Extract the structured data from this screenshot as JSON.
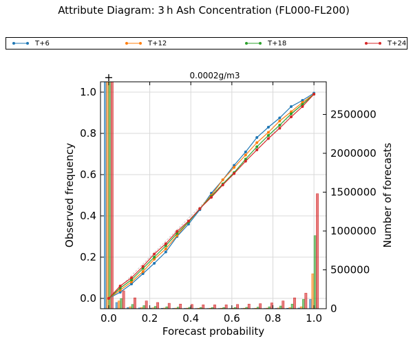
{
  "title": "Attribute Diagram: 3 h Ash Concentration (FL000-FL200)",
  "chart_data": {
    "type": "line",
    "title": "Attribute Diagram: 3 h Ash Concentration (FL000-FL200)",
    "subtitle": "0.0002g/m3",
    "xlabel": "Forecast probability",
    "ylabel": "Observed frequency",
    "y2label": "Number of forecasts",
    "xlim": [
      -0.04,
      1.06
    ],
    "ylim": [
      -0.05,
      1.05
    ],
    "y2lim": [
      0,
      2920000
    ],
    "x_ticks": [
      "0.0",
      "0.2",
      "0.4",
      "0.6",
      "0.8",
      "1.0"
    ],
    "y_ticks": [
      "0.0",
      "0.2",
      "0.4",
      "0.6",
      "0.8",
      "1.0"
    ],
    "y2_ticks": [
      "0",
      "500000",
      "1000000",
      "1500000",
      "2000000",
      "2500000"
    ],
    "grid": true,
    "legend_position": "top",
    "climatology_marker": "+",
    "x": [
      0.0,
      0.056,
      0.111,
      0.167,
      0.222,
      0.278,
      0.333,
      0.389,
      0.444,
      0.5,
      0.556,
      0.611,
      0.667,
      0.722,
      0.778,
      0.833,
      0.889,
      0.944,
      1.0
    ],
    "series": [
      {
        "name": "T+6",
        "color": "#1f77b4",
        "values": [
          0.0,
          0.03,
          0.07,
          0.12,
          0.17,
          0.225,
          0.3,
          0.36,
          0.43,
          0.51,
          0.575,
          0.645,
          0.71,
          0.78,
          0.83,
          0.875,
          0.93,
          0.96,
          0.995
        ],
        "counts": [
          2920000,
          80000,
          15000,
          10000,
          8000,
          6000,
          5000,
          5000,
          4000,
          4000,
          4000,
          4000,
          4000,
          4000,
          4000,
          5000,
          6000,
          9000,
          120000
        ]
      },
      {
        "name": "T+12",
        "color": "#ff7f0e",
        "values": [
          0.0,
          0.04,
          0.08,
          0.13,
          0.19,
          0.24,
          0.305,
          0.37,
          0.435,
          0.5,
          0.575,
          0.635,
          0.695,
          0.755,
          0.805,
          0.86,
          0.905,
          0.95,
          0.99
        ],
        "counts": [
          2920000,
          100000,
          25000,
          16000,
          12000,
          9000,
          8000,
          8000,
          7000,
          7000,
          7000,
          7000,
          7000,
          7000,
          8000,
          10000,
          15000,
          25000,
          450000
        ]
      },
      {
        "name": "T+18",
        "color": "#2ca02c",
        "values": [
          0.0,
          0.05,
          0.09,
          0.145,
          0.2,
          0.255,
          0.315,
          0.37,
          0.435,
          0.495,
          0.555,
          0.61,
          0.675,
          0.735,
          0.79,
          0.84,
          0.895,
          0.94,
          0.99
        ],
        "counts": [
          2920000,
          130000,
          55000,
          40000,
          30000,
          25000,
          20000,
          18000,
          16000,
          15000,
          15000,
          16000,
          18000,
          20000,
          25000,
          35000,
          60000,
          120000,
          940000
        ]
      },
      {
        "name": "T+24",
        "color": "#d62728",
        "values": [
          0.0,
          0.06,
          0.1,
          0.155,
          0.215,
          0.265,
          0.325,
          0.375,
          0.435,
          0.49,
          0.55,
          0.605,
          0.665,
          0.72,
          0.775,
          0.825,
          0.88,
          0.93,
          0.99
        ],
        "counts": [
          2920000,
          230000,
          140000,
          100000,
          80000,
          70000,
          60000,
          55000,
          50000,
          50000,
          50000,
          55000,
          60000,
          65000,
          75000,
          100000,
          140000,
          200000,
          1480000
        ]
      }
    ]
  }
}
